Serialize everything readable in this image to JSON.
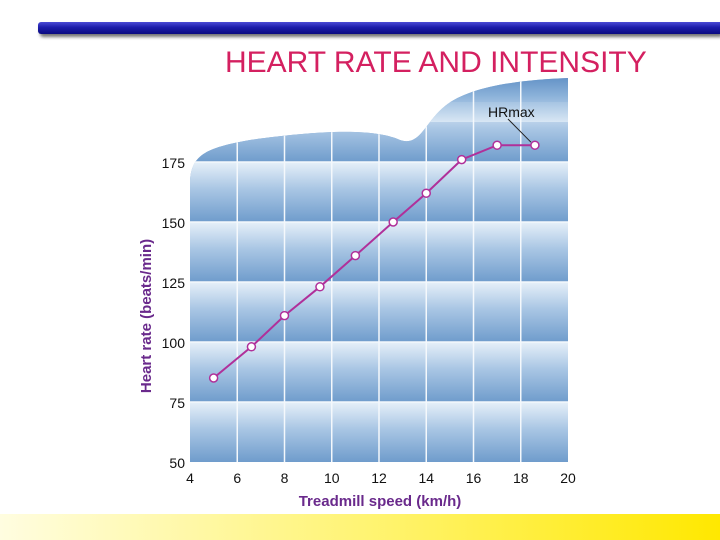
{
  "slide": {
    "title": "HEART RATE AND INTENSITY"
  },
  "colors": {
    "title": "#d42060",
    "line": "#b0309a",
    "panel_light": "#e4eff8",
    "panel_dark": "#6f9ccc",
    "top_bar": "#1d1daa",
    "bottom_bar": "#fff36a"
  },
  "chart_data": {
    "type": "line",
    "xlabel": "Treadmill speed (km/h)",
    "ylabel": "Heart rate (beats/min)",
    "xlim": [
      4,
      20
    ],
    "ylim": [
      50,
      185
    ],
    "x_ticks": [
      "4",
      "6",
      "8",
      "10",
      "12",
      "14",
      "16",
      "18",
      "20"
    ],
    "y_ticks": [
      "50",
      "75",
      "100",
      "125",
      "150",
      "175"
    ],
    "grid": true,
    "series": [
      {
        "x": [
          5,
          6.6,
          8,
          9.5,
          11,
          12.6,
          14,
          15.5,
          17,
          18.6
        ],
        "y": [
          85,
          98,
          111,
          123,
          136,
          150,
          162,
          176,
          182,
          182
        ]
      }
    ],
    "annotations": [
      {
        "text": "HRmax",
        "x": 18.6,
        "y": 182
      }
    ]
  }
}
